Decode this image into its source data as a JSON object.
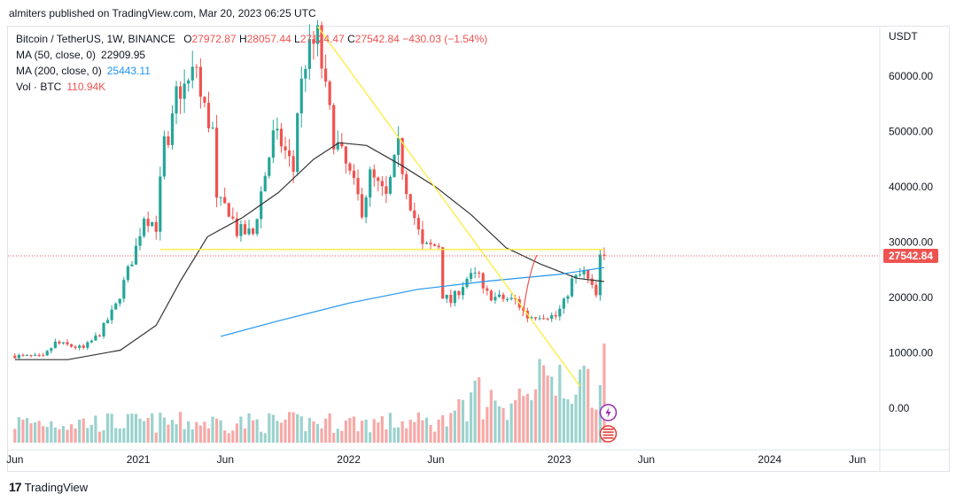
{
  "publisher_line": "almiters published on TradingView.com, Mar 20, 2023 06:25 UTC",
  "footer_brand": "TradingView",
  "legend": {
    "symbol": "Bitcoin / TetherUS, 1W, BINANCE",
    "o_key": "O",
    "o_val": "27972.87",
    "h_key": "H",
    "h_val": "28057.44",
    "l_key": "L",
    "l_val": "27124.47",
    "c_key": "C",
    "c_val": "27542.84",
    "change": "−430.03 (−1.54%)",
    "ma50_label": "MA (50, close, 0)",
    "ma50_val": "22909.95",
    "ma200_label": "MA (200, close, 0)",
    "ma200_val": "25443.11",
    "vol_label": "Vol · BTC",
    "vol_val": "110.94K"
  },
  "colors": {
    "up": "#26a69a",
    "down": "#ef5350",
    "vol_up": "#9bd2cd",
    "vol_down": "#f7a9a7",
    "ma50": "#333333",
    "ma200": "#2196f3",
    "trend": "#ffeb3b",
    "price_line": "#ef5350",
    "badge_purple": "#9c27b0",
    "badge_flag": "#e53935"
  },
  "chart_data": {
    "type": "candlestick",
    "symbol": "Bitcoin / TetherUS",
    "interval": "1W",
    "exchange": "BINANCE",
    "currency": "USDT",
    "y_ticks": [
      "60000.00",
      "50000.00",
      "40000.00",
      "30000.00",
      "20000.00",
      "10000.00",
      "0.00"
    ],
    "y_tick_values": [
      60000,
      50000,
      40000,
      30000,
      20000,
      10000,
      0
    ],
    "ylim": [
      -7500,
      69000
    ],
    "x_ticks": [
      "Jun",
      "2021",
      "Jun",
      "2022",
      "Jun",
      "2023",
      "Jun",
      "2024",
      "Jun"
    ],
    "x_tick_dates": [
      "2020-06-01",
      "2021-01-01",
      "2021-06-01",
      "2022-01-01",
      "2022-06-01",
      "2023-01-01",
      "2023-06-01",
      "2024-01-01",
      "2024-06-01"
    ],
    "xlim": [
      "2020-05-20",
      "2024-07-10"
    ],
    "last_price": "27542.84",
    "last_price_value": 27542.84,
    "price_keypoints": [
      [
        "2020-06-01",
        9500
      ],
      [
        "2020-07-20",
        9200
      ],
      [
        "2020-08-10",
        11800
      ],
      [
        "2020-09-28",
        10800
      ],
      [
        "2020-10-26",
        13500
      ],
      [
        "2020-11-23",
        18500
      ],
      [
        "2020-12-28",
        29000
      ],
      [
        "2021-01-11",
        35000
      ],
      [
        "2021-02-01",
        33000
      ],
      [
        "2021-02-15",
        48000
      ],
      [
        "2021-02-22",
        46000
      ],
      [
        "2021-03-08",
        57000
      ],
      [
        "2021-03-29",
        58500
      ],
      [
        "2021-04-12",
        62000
      ],
      [
        "2021-04-19",
        56000
      ],
      [
        "2021-05-10",
        50000
      ],
      [
        "2021-05-17",
        37000
      ],
      [
        "2021-06-07",
        36000
      ],
      [
        "2021-06-21",
        32000
      ],
      [
        "2021-07-19",
        31500
      ],
      [
        "2021-08-02",
        39000
      ],
      [
        "2021-08-23",
        49000
      ],
      [
        "2021-09-06",
        48000
      ],
      [
        "2021-09-27",
        43000
      ],
      [
        "2021-10-04",
        54000
      ],
      [
        "2021-10-18",
        63000
      ],
      [
        "2021-11-08",
        67000
      ],
      [
        "2021-11-22",
        57000
      ],
      [
        "2021-12-06",
        49000
      ],
      [
        "2022-01-03",
        42000
      ],
      [
        "2022-01-24",
        36000
      ],
      [
        "2022-02-07",
        42000
      ],
      [
        "2022-03-07",
        38000
      ],
      [
        "2022-03-28",
        47000
      ],
      [
        "2022-04-11",
        40000
      ],
      [
        "2022-05-09",
        29000
      ],
      [
        "2022-06-06",
        29500
      ],
      [
        "2022-06-13",
        20500
      ],
      [
        "2022-06-27",
        19200
      ],
      [
        "2022-07-25",
        23500
      ],
      [
        "2022-08-15",
        24000
      ],
      [
        "2022-08-22",
        21000
      ],
      [
        "2022-09-12",
        20000
      ],
      [
        "2022-10-17",
        19500
      ],
      [
        "2022-11-07",
        16500
      ],
      [
        "2022-11-28",
        16900
      ],
      [
        "2022-12-26",
        16600
      ],
      [
        "2023-01-09",
        19000
      ],
      [
        "2023-01-23",
        23000
      ],
      [
        "2023-02-13",
        24500
      ],
      [
        "2023-03-06",
        20200
      ],
      [
        "2023-03-13",
        26900
      ],
      [
        "2023-03-20",
        27542.84
      ]
    ],
    "ma50_keypoints": [
      [
        "2020-06-01",
        8800
      ],
      [
        "2020-09-01",
        8800
      ],
      [
        "2020-12-01",
        10500
      ],
      [
        "2021-02-01",
        15000
      ],
      [
        "2021-03-15",
        23000
      ],
      [
        "2021-05-01",
        31000
      ],
      [
        "2021-07-01",
        34500
      ],
      [
        "2021-09-01",
        39000
      ],
      [
        "2021-11-01",
        45000
      ],
      [
        "2021-12-15",
        48000
      ],
      [
        "2022-02-01",
        47500
      ],
      [
        "2022-04-01",
        44000
      ],
      [
        "2022-06-01",
        40000
      ],
      [
        "2022-08-01",
        35000
      ],
      [
        "2022-10-01",
        29000
      ],
      [
        "2022-12-01",
        26000
      ],
      [
        "2023-02-01",
        23500
      ],
      [
        "2023-03-20",
        22909.95
      ]
    ],
    "ma200_keypoints": [
      [
        "2021-05-24",
        13000
      ],
      [
        "2021-09-01",
        15800
      ],
      [
        "2022-01-01",
        19000
      ],
      [
        "2022-05-01",
        21500
      ],
      [
        "2022-09-01",
        23000
      ],
      [
        "2023-01-01",
        24200
      ],
      [
        "2023-03-20",
        25443.11
      ]
    ],
    "ma50_value": 22909.95,
    "ma200_value": 25443.11,
    "trendlines": [
      {
        "from": [
          "2021-11-08",
          69000
        ],
        "to": [
          "2023-02-06",
          4000
        ]
      },
      {
        "from": [
          "2021-02-08",
          28700
        ],
        "to": [
          "2023-03-20",
          28700
        ]
      }
    ],
    "volume_last": "110.94K",
    "volume_scale_note": "volume pane overlaid at bottom, relative heights"
  }
}
